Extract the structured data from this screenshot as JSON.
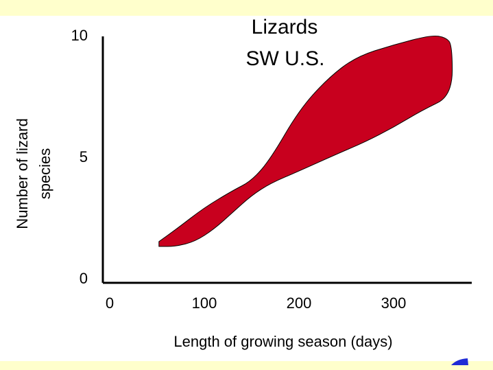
{
  "chart_data": {
    "type": "area",
    "title": "Lizards",
    "subtitle": "SW U.S.",
    "xlabel": "Length of growing season (days)",
    "ylabel_lines": [
      "Number of lizard",
      "species"
    ],
    "xlim": [
      0,
      380
    ],
    "ylim": [
      0,
      10
    ],
    "x_ticks": [
      "0",
      "100",
      "200",
      "300"
    ],
    "y_ticks": [
      "0",
      "5",
      "10"
    ],
    "grid": false,
    "legend": "none",
    "series": [
      {
        "fill": "#c8001e",
        "upper": [
          [
            52,
            1.5
          ],
          [
            70,
            2.0
          ],
          [
            100,
            2.9
          ],
          [
            130,
            3.6
          ],
          [
            150,
            4.0
          ],
          [
            170,
            4.9
          ],
          [
            200,
            6.9
          ],
          [
            230,
            8.2
          ],
          [
            260,
            9.1
          ],
          [
            300,
            9.6
          ],
          [
            340,
            10.0
          ],
          [
            355,
            9.9
          ],
          [
            362,
            9.6
          ]
        ],
        "lower": [
          [
            362,
            7.5
          ],
          [
            330,
            6.9
          ],
          [
            300,
            6.2
          ],
          [
            270,
            5.6
          ],
          [
            240,
            5.1
          ],
          [
            200,
            4.4
          ],
          [
            170,
            3.9
          ],
          [
            150,
            3.4
          ],
          [
            130,
            2.7
          ],
          [
            110,
            2.0
          ],
          [
            90,
            1.5
          ],
          [
            70,
            1.3
          ],
          [
            52,
            1.3
          ]
        ]
      }
    ]
  },
  "colors": {
    "background": "#ffffcc",
    "panel": "#ffffff",
    "accent_mark": "#1f2bd6"
  }
}
